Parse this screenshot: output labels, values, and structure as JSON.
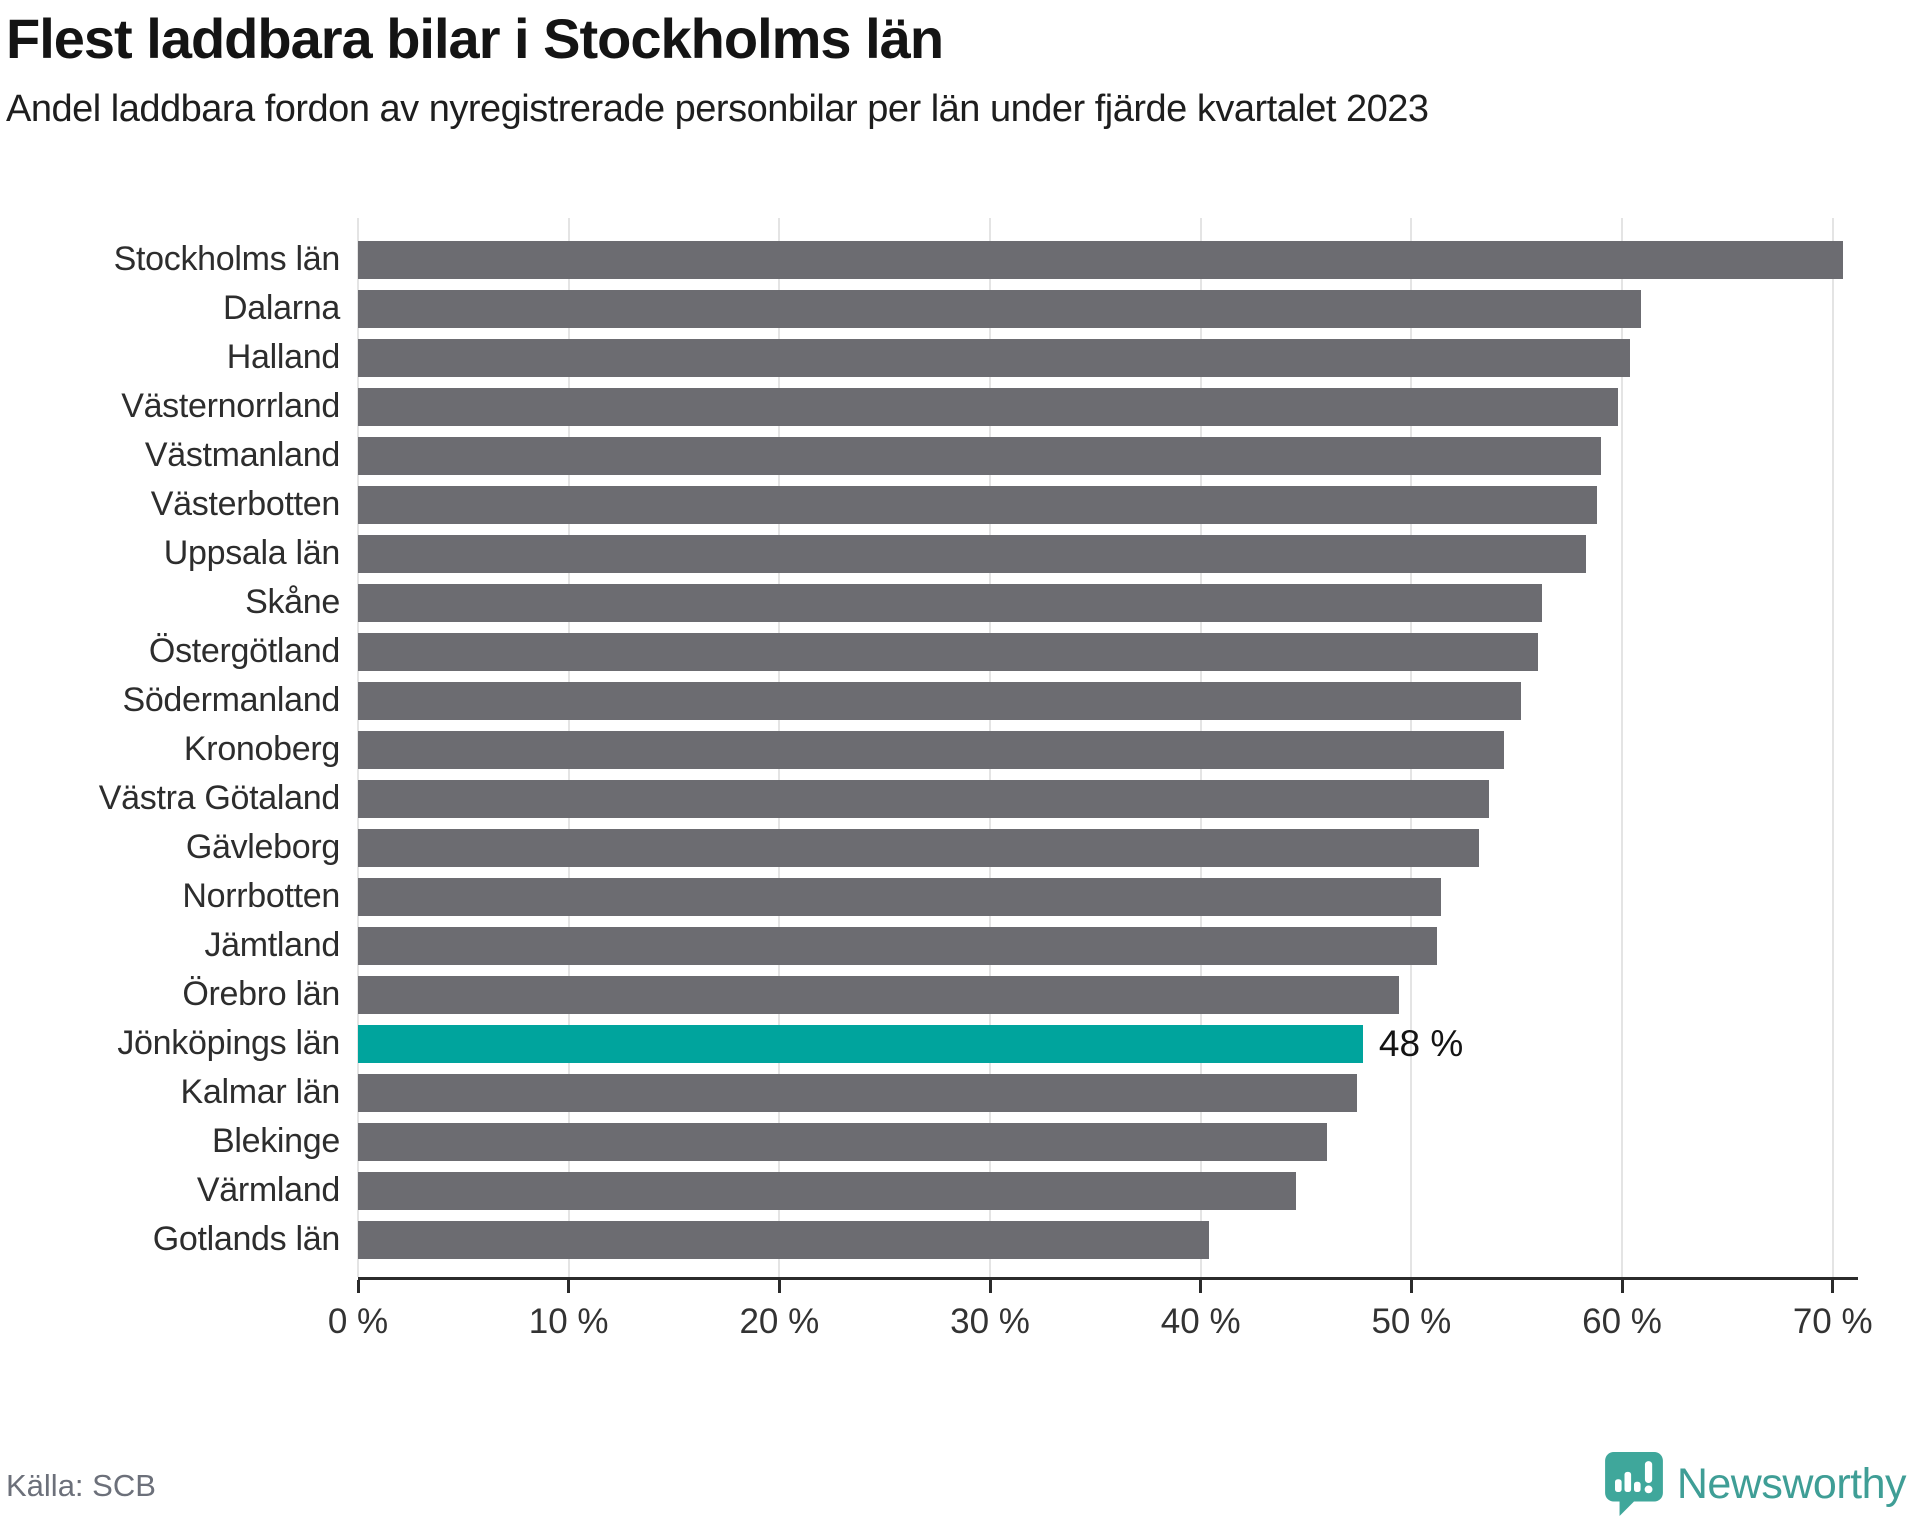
{
  "header": {
    "title": "Flest laddbara bilar i Stockholms län",
    "subtitle": "Andel laddbara fordon av nyregistrerade personbilar per län under fjärde kvartalet 2023"
  },
  "chart_data": {
    "type": "bar",
    "orientation": "horizontal",
    "title": "Flest laddbara bilar i Stockholms län",
    "subtitle": "Andel laddbara fordon av nyregistrerade personbilar per län under fjärde kvartalet 2023",
    "categories": [
      "Stockholms län",
      "Dalarna",
      "Halland",
      "Västernorrland",
      "Västmanland",
      "Västerbotten",
      "Uppsala län",
      "Skåne",
      "Östergötland",
      "Södermanland",
      "Kronoberg",
      "Västra Götaland",
      "Gävleborg",
      "Norrbotten",
      "Jämtland",
      "Örebro län",
      "Jönköpings län",
      "Kalmar län",
      "Blekinge",
      "Värmland",
      "Gotlands län"
    ],
    "values": [
      70.5,
      60.9,
      60.4,
      59.8,
      59.0,
      58.8,
      58.3,
      56.2,
      56.0,
      55.2,
      54.4,
      53.7,
      53.2,
      51.4,
      51.2,
      49.4,
      47.7,
      47.4,
      46.0,
      44.5,
      40.4
    ],
    "unit": "%",
    "xlim": [
      0,
      71.2
    ],
    "x_ticks": [
      0,
      10,
      20,
      30,
      40,
      50,
      60,
      70
    ],
    "x_tick_labels": [
      "0 %",
      "10 %",
      "20 %",
      "30 %",
      "40 %",
      "50 %",
      "60 %",
      "70 %"
    ],
    "grid": true,
    "highlight": {
      "category": "Jönköpings län",
      "index": 16,
      "value_label": "48 %"
    },
    "colors": {
      "bar": "#6c6c71",
      "highlight": "#00a49d",
      "grid": "#e4e4e4",
      "axis": "#2b2b2b"
    }
  },
  "footer": {
    "source": "Källa: SCB",
    "brand": "Newsworthy",
    "brand_color": "#3f9e96"
  }
}
